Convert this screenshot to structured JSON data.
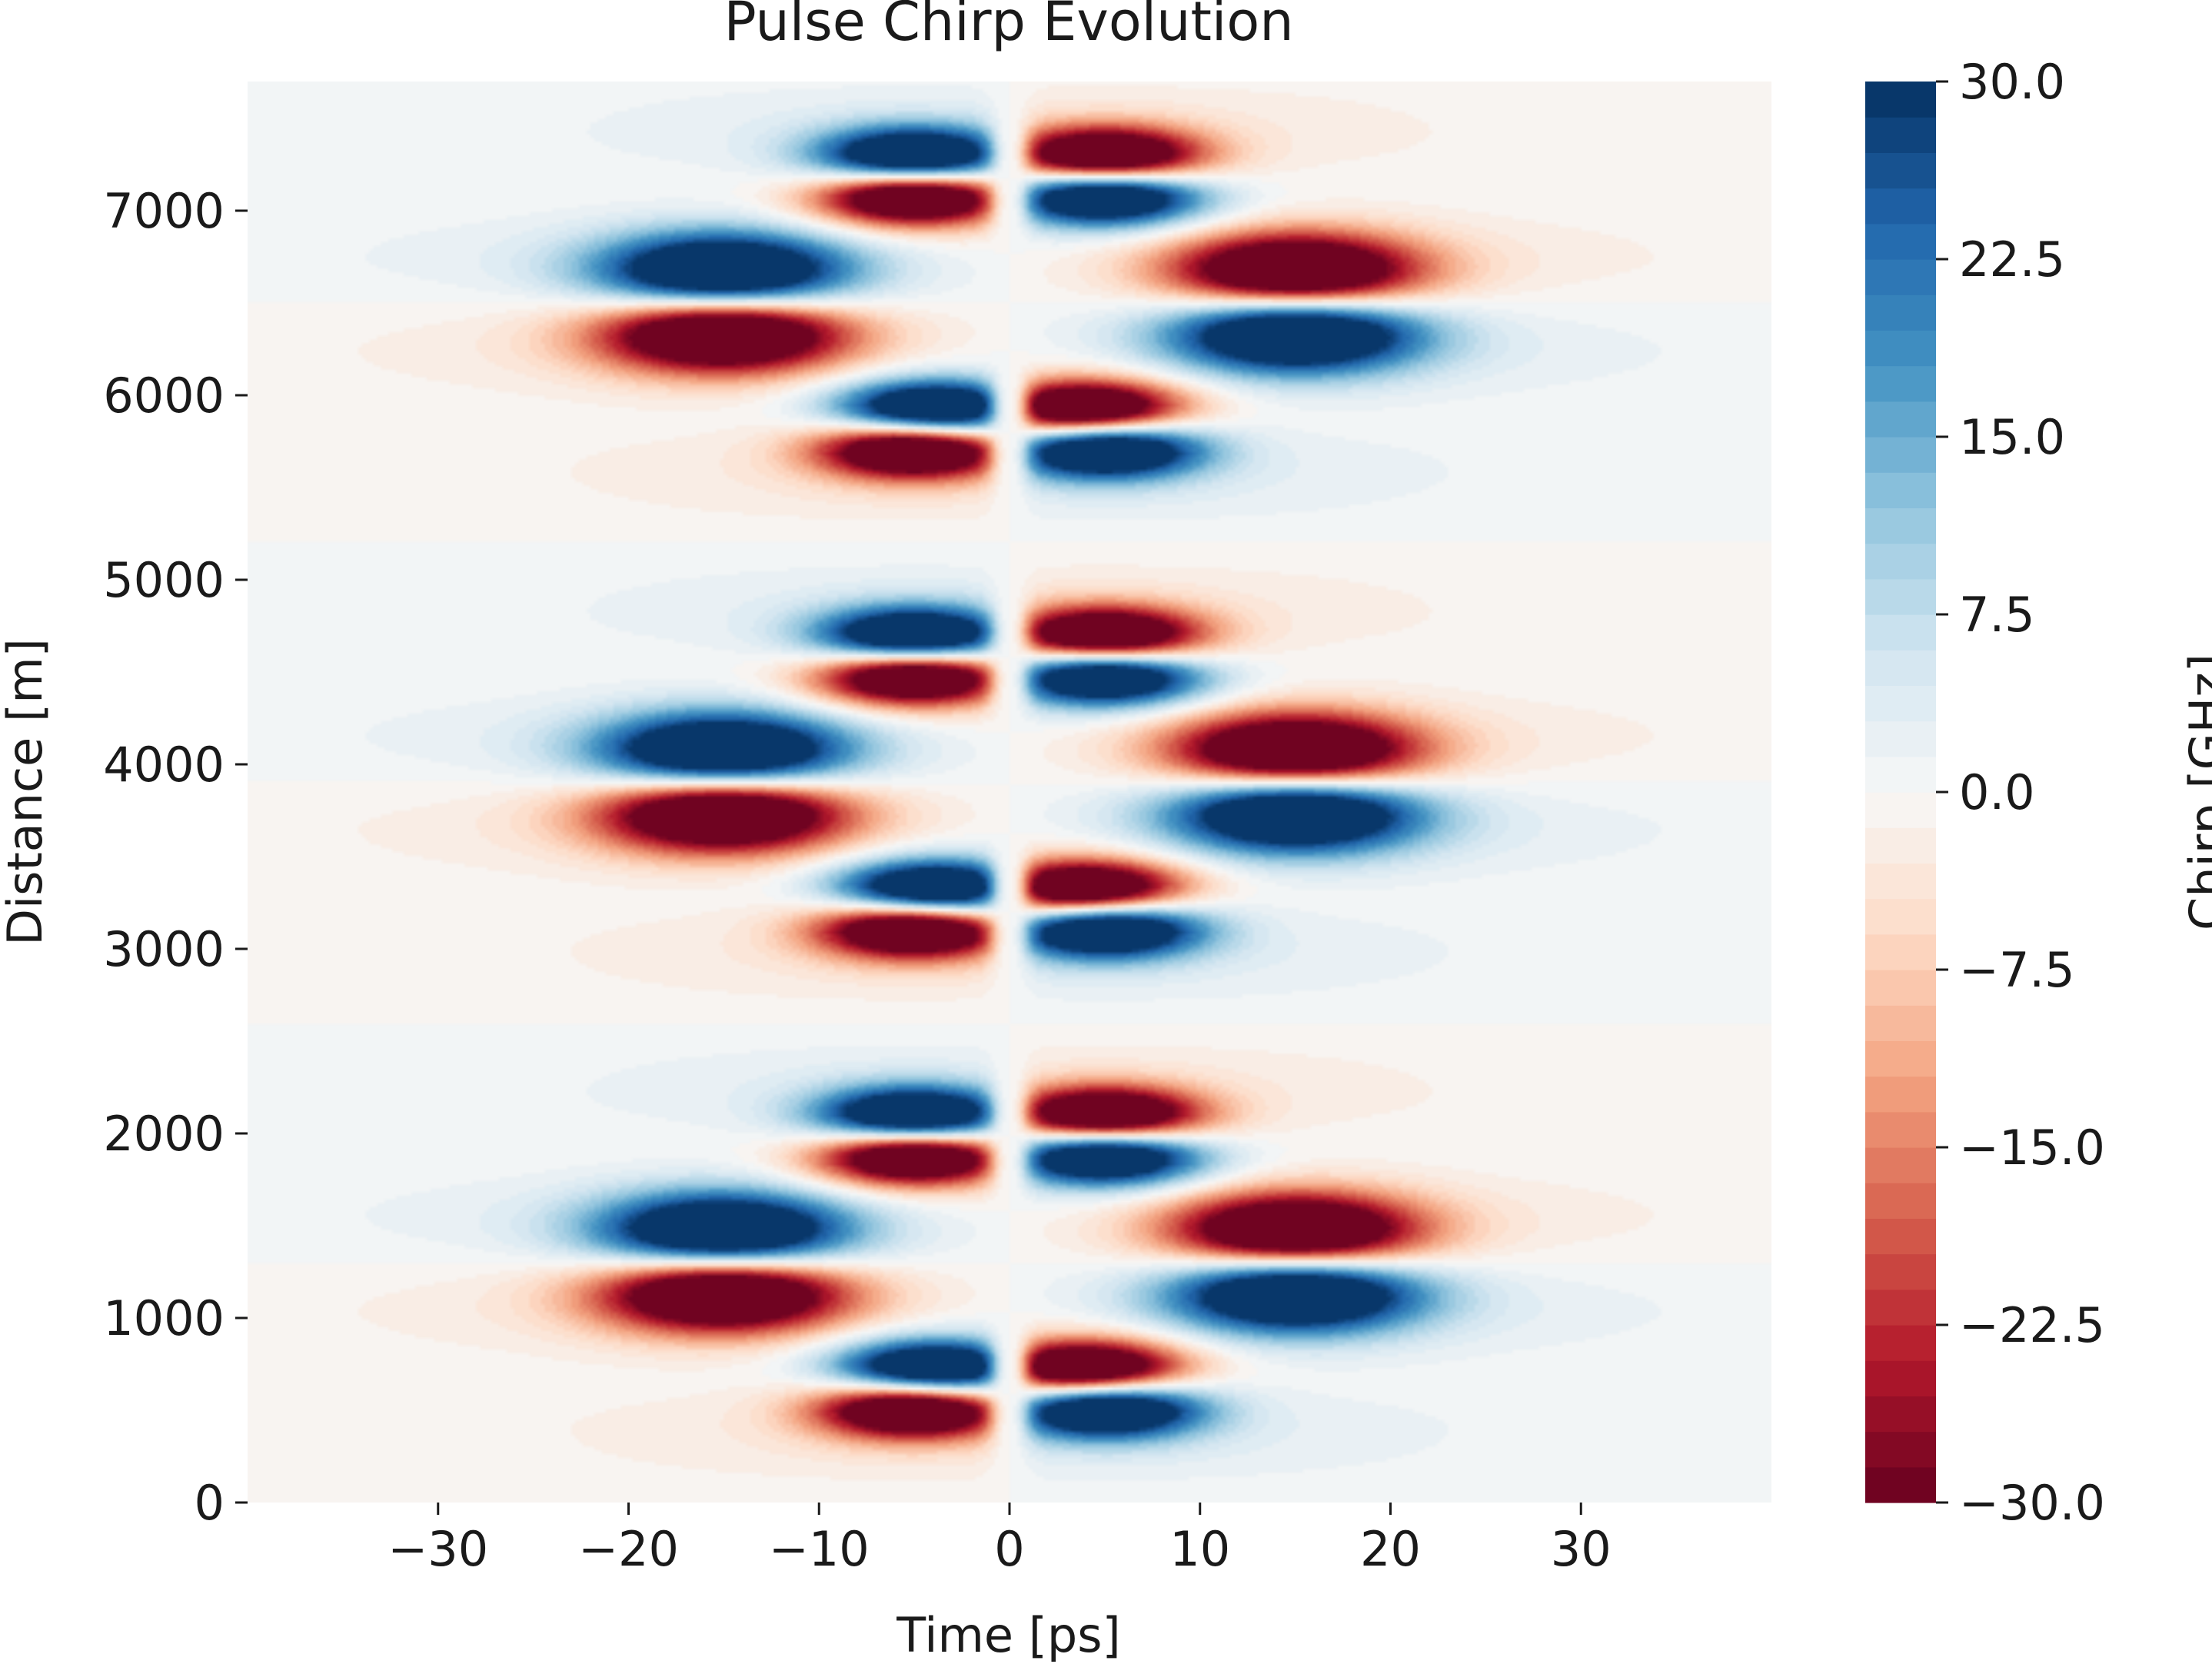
{
  "chart_data": {
    "type": "heatmap",
    "title": "Pulse Chirp Evolution",
    "xlabel": "Time [ps]",
    "ylabel": "Distance [m]",
    "xlim": [
      -40,
      40
    ],
    "ylim": [
      0,
      7700
    ],
    "xticks": [
      -30,
      -20,
      -10,
      0,
      10,
      20,
      30
    ],
    "xtick_labels": [
      "−30",
      "−20",
      "−10",
      "0",
      "10",
      "20",
      "30"
    ],
    "yticks": [
      0,
      1000,
      2000,
      3000,
      4000,
      5000,
      6000,
      7000
    ],
    "ytick_labels": [
      "0",
      "1000",
      "2000",
      "3000",
      "4000",
      "5000",
      "6000",
      "7000"
    ],
    "colorbar": {
      "label": "Chirp [GHz]",
      "range": [
        -30,
        30
      ],
      "levels": 40,
      "colormap": "RdBu",
      "ticks": [
        -30,
        -22.5,
        -15,
        -7.5,
        0,
        7.5,
        15,
        22.5,
        30
      ],
      "tick_labels": [
        "−30.0",
        "−22.5",
        "−15.0",
        "−7.5",
        "0.0",
        "7.5",
        "15.0",
        "22.5",
        "30.0"
      ]
    },
    "grid": false,
    "pattern": {
      "period_m": 2600,
      "features": [
        {
          "t_ps": 5,
          "z_m": 510,
          "chirp_ghz": 30
        },
        {
          "t_ps": 4,
          "z_m": 720,
          "chirp_ghz": -30
        },
        {
          "t_ps": 15,
          "z_m": 1140,
          "chirp_ghz": 30
        },
        {
          "t_ps": 15,
          "z_m": 1460,
          "chirp_ghz": -30
        },
        {
          "t_ps": 5,
          "z_m": 1880,
          "chirp_ghz": 30
        },
        {
          "t_ps": 5,
          "z_m": 2090,
          "chirp_ghz": -30
        }
      ],
      "antisymmetric_in_time": true
    }
  }
}
